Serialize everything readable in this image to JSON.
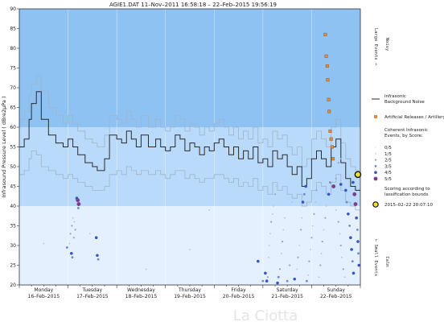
{
  "chart_data": {
    "type": "line",
    "title": "AGIE1.DAT   11–Nov–2011 16:58:18   –   22–Feb–2015 19:56:19",
    "ylabel": "Infrasound Pressure Level  ( dBre2µPa )",
    "ylim": [
      20,
      90
    ],
    "yticks": [
      20,
      25,
      30,
      35,
      40,
      45,
      50,
      55,
      60,
      65,
      70,
      75,
      80,
      85,
      90
    ],
    "xlim": [
      0,
      7
    ],
    "x_unit": "days from 16–Feb–2015 00:00",
    "day_labels": [
      {
        "day": "Monday",
        "date": "16–Feb–2015"
      },
      {
        "day": "Tuesday",
        "date": "17–Feb–2015"
      },
      {
        "day": "Wednesday",
        "date": "18–Feb–2015"
      },
      {
        "day": "Thursday",
        "date": "19–Feb–2015"
      },
      {
        "day": "Friday",
        "date": "20–Feb–2015"
      },
      {
        "day": "Saturday",
        "date": "21–Feb–2015"
      },
      {
        "day": "Sunday",
        "date": "22–Feb–2015"
      }
    ],
    "bands": [
      {
        "from": 60,
        "to": 90,
        "color": "#8ec2f2"
      },
      {
        "from": 40,
        "to": 60,
        "color": "#b9dafa"
      },
      {
        "from": 20,
        "to": 40,
        "color": "#e4f0fd"
      }
    ],
    "right_labels": {
      "large": "Large Events →",
      "noisy": "Noisy",
      "small": "← Small Events",
      "calm": "Calm"
    },
    "noise_series": {
      "name": "Infrasonic Background Noise",
      "color": "#2b2b2b",
      "x": [
        0,
        0.1,
        0.2,
        0.25,
        0.35,
        0.45,
        0.6,
        0.75,
        0.9,
        1.0,
        1.1,
        1.2,
        1.35,
        1.5,
        1.6,
        1.75,
        1.85,
        2.0,
        2.1,
        2.2,
        2.3,
        2.4,
        2.5,
        2.65,
        2.8,
        2.9,
        3.0,
        3.1,
        3.2,
        3.3,
        3.4,
        3.5,
        3.6,
        3.7,
        3.8,
        3.9,
        4.0,
        4.1,
        4.2,
        4.3,
        4.4,
        4.5,
        4.6,
        4.7,
        4.8,
        4.9,
        5.0,
        5.1,
        5.2,
        5.3,
        5.4,
        5.5,
        5.6,
        5.7,
        5.8,
        5.9,
        6.0,
        6.1,
        6.2,
        6.3,
        6.4,
        6.5,
        6.6,
        6.7,
        6.8,
        6.9
      ],
      "y": [
        55,
        57,
        62,
        66,
        69,
        62,
        58,
        56,
        55,
        57,
        55,
        53,
        51,
        50,
        49,
        52,
        58,
        57,
        56,
        59,
        57,
        55,
        58,
        55,
        57,
        55,
        54,
        55,
        58,
        57,
        54,
        56,
        55,
        53,
        55,
        54,
        56,
        57,
        55,
        53,
        55,
        52,
        54,
        52,
        55,
        51,
        52,
        50,
        54,
        52,
        53,
        50,
        48,
        50,
        45,
        47,
        52,
        54,
        52,
        50,
        55,
        57,
        51,
        47,
        45,
        44
      ],
      "low_y": [
        48,
        49,
        52,
        54,
        53,
        50,
        49,
        48,
        47,
        48,
        47,
        46,
        45,
        44,
        44,
        45,
        48,
        49,
        48,
        50,
        49,
        48,
        49,
        48,
        49,
        48,
        47,
        48,
        49,
        49,
        47,
        48,
        47,
        46,
        47,
        47,
        48,
        48,
        47,
        46,
        47,
        45,
        46,
        45,
        47,
        44,
        45,
        43,
        46,
        44,
        45,
        43,
        42,
        43,
        40,
        41,
        44,
        46,
        45,
        43,
        46,
        48,
        44,
        41,
        40,
        39
      ],
      "high_y": [
        62,
        64,
        68,
        71,
        73,
        69,
        65,
        63,
        61,
        63,
        61,
        59,
        57,
        56,
        55,
        58,
        63,
        62,
        61,
        64,
        62,
        60,
        63,
        60,
        62,
        60,
        59,
        60,
        63,
        62,
        59,
        61,
        60,
        58,
        60,
        59,
        61,
        62,
        60,
        58,
        60,
        57,
        59,
        57,
        60,
        56,
        57,
        55,
        59,
        57,
        58,
        55,
        53,
        55,
        50,
        52,
        57,
        59,
        57,
        55,
        60,
        62,
        56,
        52,
        50,
        49
      ]
    },
    "artillery_series": {
      "name": "Artificial Releases / Artillery",
      "color": "#e08a3c",
      "x": [
        6.28,
        6.3,
        6.32,
        6.33,
        6.35,
        6.36,
        6.38,
        6.4,
        6.42,
        6.44
      ],
      "y": [
        83.5,
        78,
        75.5,
        72,
        67,
        64,
        59,
        57,
        55,
        52
      ]
    },
    "events_legend_title": "Coherent Infrasonic Events, by Score:",
    "score_classes": [
      {
        "label": "0/5",
        "color": "#d9d9d9"
      },
      {
        "label": "1/5",
        "color": "#b5b9c8"
      },
      {
        "label": "2/5",
        "color": "#93a4c9"
      },
      {
        "label": "3/5",
        "color": "#6f88c7"
      },
      {
        "label": "4/5",
        "color": "#3557c6"
      },
      {
        "label": "5/5",
        "color": "#7b3f8a"
      }
    ],
    "events": [
      {
        "x": 1.2,
        "y": 41.5,
        "s": 5
      },
      {
        "x": 1.22,
        "y": 40.5,
        "s": 5
      },
      {
        "x": 1.18,
        "y": 42,
        "s": 4
      },
      {
        "x": 1.21,
        "y": 39.5,
        "s": 3
      },
      {
        "x": 1.05,
        "y": 33,
        "s": 2
      },
      {
        "x": 1.08,
        "y": 35,
        "s": 2
      },
      {
        "x": 1.1,
        "y": 37,
        "s": 1
      },
      {
        "x": 1.07,
        "y": 28,
        "s": 4
      },
      {
        "x": 1.09,
        "y": 27,
        "s": 3
      },
      {
        "x": 1.12,
        "y": 32,
        "s": 2
      },
      {
        "x": 1.13,
        "y": 36,
        "s": 1
      },
      {
        "x": 1.15,
        "y": 34,
        "s": 2
      },
      {
        "x": 0.98,
        "y": 29.5,
        "s": 3
      },
      {
        "x": 1.03,
        "y": 30.5,
        "s": 1
      },
      {
        "x": 1.45,
        "y": 33,
        "s": 1
      },
      {
        "x": 1.6,
        "y": 27.5,
        "s": 4
      },
      {
        "x": 1.62,
        "y": 26.5,
        "s": 3
      },
      {
        "x": 1.58,
        "y": 32,
        "s": 4
      },
      {
        "x": 0.5,
        "y": 30.5,
        "s": 1
      },
      {
        "x": 2.6,
        "y": 24,
        "s": 1
      },
      {
        "x": 3.5,
        "y": 29,
        "s": 1
      },
      {
        "x": 3.9,
        "y": 39,
        "s": 1
      },
      {
        "x": 4.9,
        "y": 26,
        "s": 4
      },
      {
        "x": 5.0,
        "y": 21,
        "s": 3
      },
      {
        "x": 5.05,
        "y": 23,
        "s": 4
      },
      {
        "x": 5.08,
        "y": 21,
        "s": 4
      },
      {
        "x": 5.1,
        "y": 22,
        "s": 2
      },
      {
        "x": 5.12,
        "y": 27,
        "s": 1
      },
      {
        "x": 5.13,
        "y": 30,
        "s": 1
      },
      {
        "x": 5.15,
        "y": 33,
        "s": 1
      },
      {
        "x": 5.17,
        "y": 36,
        "s": 2
      },
      {
        "x": 5.2,
        "y": 38,
        "s": 1
      },
      {
        "x": 5.22,
        "y": 40,
        "s": 1
      },
      {
        "x": 5.25,
        "y": 43,
        "s": 2
      },
      {
        "x": 5.28,
        "y": 45,
        "s": 1
      },
      {
        "x": 5.3,
        "y": 20.5,
        "s": 4
      },
      {
        "x": 5.32,
        "y": 22,
        "s": 3
      },
      {
        "x": 5.35,
        "y": 24,
        "s": 2
      },
      {
        "x": 5.38,
        "y": 28,
        "s": 1
      },
      {
        "x": 5.4,
        "y": 31,
        "s": 2
      },
      {
        "x": 5.42,
        "y": 34,
        "s": 1
      },
      {
        "x": 5.45,
        "y": 37,
        "s": 1
      },
      {
        "x": 5.5,
        "y": 21,
        "s": 3
      },
      {
        "x": 5.55,
        "y": 25,
        "s": 2
      },
      {
        "x": 5.6,
        "y": 41,
        "s": 1
      },
      {
        "x": 5.65,
        "y": 21.5,
        "s": 4
      },
      {
        "x": 5.7,
        "y": 24,
        "s": 1
      },
      {
        "x": 5.72,
        "y": 27,
        "s": 2
      },
      {
        "x": 5.75,
        "y": 30,
        "s": 1
      },
      {
        "x": 5.78,
        "y": 34,
        "s": 2
      },
      {
        "x": 5.8,
        "y": 37,
        "s": 1
      },
      {
        "x": 5.82,
        "y": 41,
        "s": 4
      },
      {
        "x": 5.85,
        "y": 43,
        "s": 3
      },
      {
        "x": 5.88,
        "y": 45,
        "s": 4
      },
      {
        "x": 5.9,
        "y": 21,
        "s": 3
      },
      {
        "x": 5.93,
        "y": 22.5,
        "s": 1
      },
      {
        "x": 5.95,
        "y": 26,
        "s": 2
      },
      {
        "x": 5.98,
        "y": 29,
        "s": 1
      },
      {
        "x": 6.0,
        "y": 32,
        "s": 2
      },
      {
        "x": 6.02,
        "y": 35,
        "s": 1
      },
      {
        "x": 6.05,
        "y": 38,
        "s": 2
      },
      {
        "x": 6.08,
        "y": 41,
        "s": 1
      },
      {
        "x": 6.1,
        "y": 44,
        "s": 2
      },
      {
        "x": 6.15,
        "y": 22,
        "s": 1
      },
      {
        "x": 6.18,
        "y": 25,
        "s": 2
      },
      {
        "x": 6.2,
        "y": 28,
        "s": 1
      },
      {
        "x": 6.22,
        "y": 31,
        "s": 2
      },
      {
        "x": 6.25,
        "y": 34,
        "s": 1
      },
      {
        "x": 6.28,
        "y": 37,
        "s": 2
      },
      {
        "x": 6.3,
        "y": 40,
        "s": 1
      },
      {
        "x": 6.35,
        "y": 43,
        "s": 4
      },
      {
        "x": 6.38,
        "y": 46,
        "s": 3
      },
      {
        "x": 6.45,
        "y": 45,
        "s": 5
      },
      {
        "x": 6.5,
        "y": 39,
        "s": 1
      },
      {
        "x": 6.55,
        "y": 36,
        "s": 2
      },
      {
        "x": 6.58,
        "y": 33,
        "s": 1
      },
      {
        "x": 6.6,
        "y": 30,
        "s": 2
      },
      {
        "x": 6.62,
        "y": 27,
        "s": 1
      },
      {
        "x": 6.65,
        "y": 24,
        "s": 2
      },
      {
        "x": 6.68,
        "y": 22,
        "s": 1
      },
      {
        "x": 6.7,
        "y": 44,
        "s": 4
      },
      {
        "x": 6.72,
        "y": 41,
        "s": 3
      },
      {
        "x": 6.75,
        "y": 38,
        "s": 4
      },
      {
        "x": 6.78,
        "y": 35,
        "s": 3
      },
      {
        "x": 6.8,
        "y": 32,
        "s": 4
      },
      {
        "x": 6.82,
        "y": 29,
        "s": 4
      },
      {
        "x": 6.84,
        "y": 26,
        "s": 3
      },
      {
        "x": 6.86,
        "y": 23,
        "s": 4
      },
      {
        "x": 6.88,
        "y": 43,
        "s": 5
      },
      {
        "x": 6.9,
        "y": 40.5,
        "s": 5
      },
      {
        "x": 6.92,
        "y": 37,
        "s": 4
      },
      {
        "x": 6.94,
        "y": 34,
        "s": 3
      },
      {
        "x": 6.95,
        "y": 31,
        "s": 4
      },
      {
        "x": 6.96,
        "y": 28,
        "s": 3
      },
      {
        "x": 6.97,
        "y": 25,
        "s": 4
      },
      {
        "x": 6.6,
        "y": 45.5,
        "s": 4
      },
      {
        "x": 6.85,
        "y": 46,
        "s": 4
      },
      {
        "x": 6.92,
        "y": 48,
        "s": 5
      },
      {
        "x": 6.5,
        "y": 47,
        "s": 2
      },
      {
        "x": 6.55,
        "y": 51,
        "s": 2
      },
      {
        "x": 6.6,
        "y": 52,
        "s": 1
      }
    ],
    "scoring_note": "Scoring according to classification bounds",
    "highlight": {
      "label": "2015–02–22 20:07:10",
      "x": 6.95,
      "y": 48,
      "color": "#f1e325"
    },
    "footer_text": "La Ciotta"
  }
}
